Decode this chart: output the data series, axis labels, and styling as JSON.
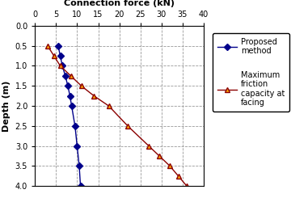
{
  "title": "Connection force (kN)",
  "xlabel": "Connection force (kN)",
  "ylabel": "Depth (m)",
  "xlim": [
    0,
    40
  ],
  "ylim": [
    4,
    0
  ],
  "xticks": [
    0,
    5,
    10,
    15,
    20,
    25,
    30,
    35,
    40
  ],
  "yticks": [
    0,
    0.5,
    1.0,
    1.5,
    2.0,
    2.5,
    3.0,
    3.5,
    4.0
  ],
  "proposed_depth": [
    0.5,
    0.75,
    1.0,
    1.25,
    1.5,
    1.75,
    2.0,
    2.5,
    3.0,
    3.5,
    4.0
  ],
  "proposed_force": [
    5.5,
    6.0,
    6.5,
    7.2,
    7.8,
    8.3,
    8.7,
    9.5,
    10.0,
    10.5,
    10.8
  ],
  "friction_depth": [
    0.5,
    0.75,
    1.0,
    1.25,
    1.5,
    1.75,
    2.0,
    2.5,
    3.0,
    3.25,
    3.5,
    3.75,
    4.0
  ],
  "friction_force": [
    3.0,
    4.5,
    6.0,
    8.5,
    11.0,
    14.0,
    17.5,
    22.0,
    27.0,
    29.5,
    32.0,
    34.0,
    36.0
  ],
  "proposed_color": "#00008B",
  "friction_color": "#8B0000",
  "marker_proposed": "D",
  "marker_friction": "^",
  "legend_proposed": "Proposed\nmethod",
  "legend_friction": "Maximum\nfriction\ncapacity at\nfacing",
  "bg_color": "#ffffff",
  "grid_color": "#999999",
  "marker_face_proposed": "#00008B",
  "marker_face_friction": "#FFA500"
}
